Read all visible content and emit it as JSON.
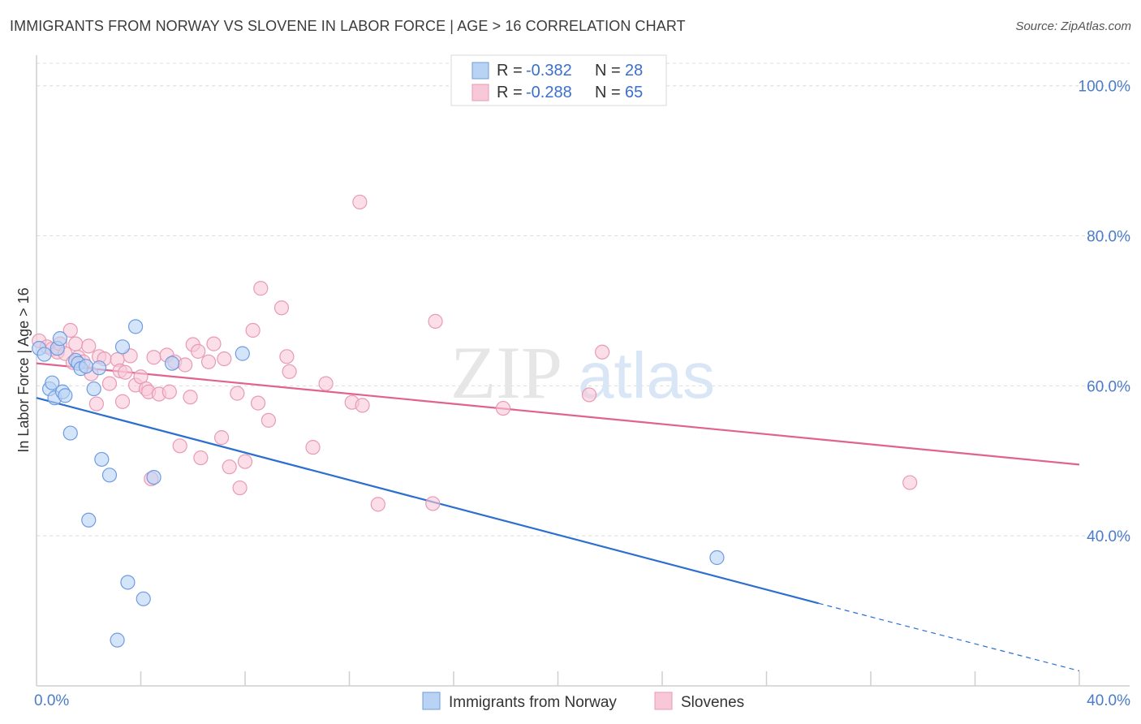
{
  "title": "IMMIGRANTS FROM NORWAY VS SLOVENE IN LABOR FORCE | AGE > 16 CORRELATION CHART",
  "source": "Source: ZipAtlas.com",
  "watermark": {
    "zip": "ZIP",
    "atlas": "atlas"
  },
  "colors": {
    "norway_fill": "#b9d3f5",
    "norway_stroke": "#6f9be0",
    "norway_line": "#2c6fcf",
    "slovene_fill": "#f8c8d8",
    "slovene_stroke": "#e89ab4",
    "slovene_line": "#e0628e",
    "tick": "#4a7cc9",
    "grid": "#dcdcdc"
  },
  "legend": {
    "items": [
      {
        "r_label": "R = ",
        "r_value": "-0.382",
        "n_label": "N = ",
        "n_value": "28"
      },
      {
        "r_label": "R = ",
        "r_value": "-0.288",
        "n_label": "N = ",
        "n_value": "65"
      }
    ]
  },
  "chart_data": {
    "type": "scatter",
    "title": "IMMIGRANTS FROM NORWAY VS SLOVENE IN LABOR FORCE | AGE > 16 CORRELATION CHART",
    "xlabel": "",
    "ylabel": "In Labor Force | Age > 16",
    "xlim": [
      0,
      40
    ],
    "ylim": [
      20,
      103
    ],
    "x_tick_labels": [
      "0.0%",
      "40.0%"
    ],
    "y_ticks": [
      40,
      60,
      80,
      100
    ],
    "y_tick_labels": [
      "40.0%",
      "60.0%",
      "80.0%",
      "100.0%"
    ],
    "grid": true,
    "legend_position": "top-center",
    "series": [
      {
        "name": "Immigrants from Norway",
        "r": -0.382,
        "n": 28,
        "trend": {
          "x0": 0,
          "y0": 58.4,
          "x1": 30,
          "y1": 31.0,
          "dash_to_x": 40,
          "dash_to_y": 22.0
        },
        "points": [
          [
            0.1,
            65.0
          ],
          [
            0.3,
            64.2
          ],
          [
            0.5,
            59.6
          ],
          [
            0.6,
            60.4
          ],
          [
            0.7,
            58.4
          ],
          [
            0.8,
            65.0
          ],
          [
            0.9,
            66.3
          ],
          [
            1.0,
            59.2
          ],
          [
            1.1,
            58.7
          ],
          [
            1.3,
            53.7
          ],
          [
            1.5,
            63.4
          ],
          [
            1.6,
            63.0
          ],
          [
            1.7,
            62.3
          ],
          [
            1.9,
            62.6
          ],
          [
            2.0,
            42.1
          ],
          [
            2.2,
            59.6
          ],
          [
            2.4,
            62.4
          ],
          [
            2.5,
            50.2
          ],
          [
            2.8,
            48.1
          ],
          [
            3.1,
            26.1
          ],
          [
            3.3,
            65.2
          ],
          [
            3.5,
            33.8
          ],
          [
            3.8,
            67.9
          ],
          [
            4.1,
            31.6
          ],
          [
            4.5,
            47.8
          ],
          [
            5.2,
            63.0
          ],
          [
            7.9,
            64.3
          ],
          [
            26.1,
            37.1
          ]
        ]
      },
      {
        "name": "Slovenes",
        "r": -0.288,
        "n": 65,
        "trend": {
          "x0": 0,
          "y0": 63.0,
          "x1": 40,
          "y1": 49.5
        },
        "points": [
          [
            0.1,
            66.0
          ],
          [
            0.4,
            65.2
          ],
          [
            0.6,
            64.9
          ],
          [
            0.8,
            64.5
          ],
          [
            0.9,
            65.6
          ],
          [
            1.1,
            64.3
          ],
          [
            1.3,
            67.4
          ],
          [
            1.5,
            65.6
          ],
          [
            1.6,
            63.8
          ],
          [
            1.8,
            63.2
          ],
          [
            2.0,
            65.3
          ],
          [
            2.1,
            61.6
          ],
          [
            2.3,
            57.6
          ],
          [
            2.4,
            63.9
          ],
          [
            2.6,
            63.6
          ],
          [
            2.8,
            60.3
          ],
          [
            3.1,
            63.5
          ],
          [
            3.2,
            62.0
          ],
          [
            3.3,
            57.9
          ],
          [
            3.4,
            61.8
          ],
          [
            3.6,
            64.0
          ],
          [
            3.8,
            60.1
          ],
          [
            4.0,
            61.2
          ],
          [
            4.2,
            59.6
          ],
          [
            4.3,
            59.2
          ],
          [
            4.4,
            47.6
          ],
          [
            4.5,
            63.8
          ],
          [
            4.7,
            58.9
          ],
          [
            5.0,
            64.1
          ],
          [
            5.1,
            59.2
          ],
          [
            5.3,
            63.2
          ],
          [
            5.5,
            52.0
          ],
          [
            5.7,
            62.8
          ],
          [
            5.9,
            58.5
          ],
          [
            6.0,
            65.5
          ],
          [
            6.2,
            64.6
          ],
          [
            6.3,
            50.4
          ],
          [
            6.6,
            63.2
          ],
          [
            6.8,
            65.6
          ],
          [
            7.1,
            53.1
          ],
          [
            7.2,
            63.6
          ],
          [
            7.4,
            49.2
          ],
          [
            7.7,
            59.0
          ],
          [
            7.8,
            46.4
          ],
          [
            8.0,
            49.9
          ],
          [
            8.3,
            67.4
          ],
          [
            8.5,
            57.7
          ],
          [
            8.6,
            73.0
          ],
          [
            8.9,
            55.4
          ],
          [
            9.4,
            70.4
          ],
          [
            9.6,
            63.9
          ],
          [
            9.7,
            61.9
          ],
          [
            10.6,
            51.8
          ],
          [
            11.1,
            60.3
          ],
          [
            12.1,
            57.8
          ],
          [
            12.5,
            57.4
          ],
          [
            12.4,
            84.5
          ],
          [
            13.1,
            44.2
          ],
          [
            15.2,
            44.3
          ],
          [
            15.3,
            68.6
          ],
          [
            17.9,
            57.0
          ],
          [
            21.2,
            58.8
          ],
          [
            21.7,
            64.5
          ],
          [
            33.5,
            47.1
          ],
          [
            1.4,
            63.1
          ]
        ]
      }
    ]
  },
  "bottom_legend": [
    "Immigrants from Norway",
    "Slovenes"
  ]
}
